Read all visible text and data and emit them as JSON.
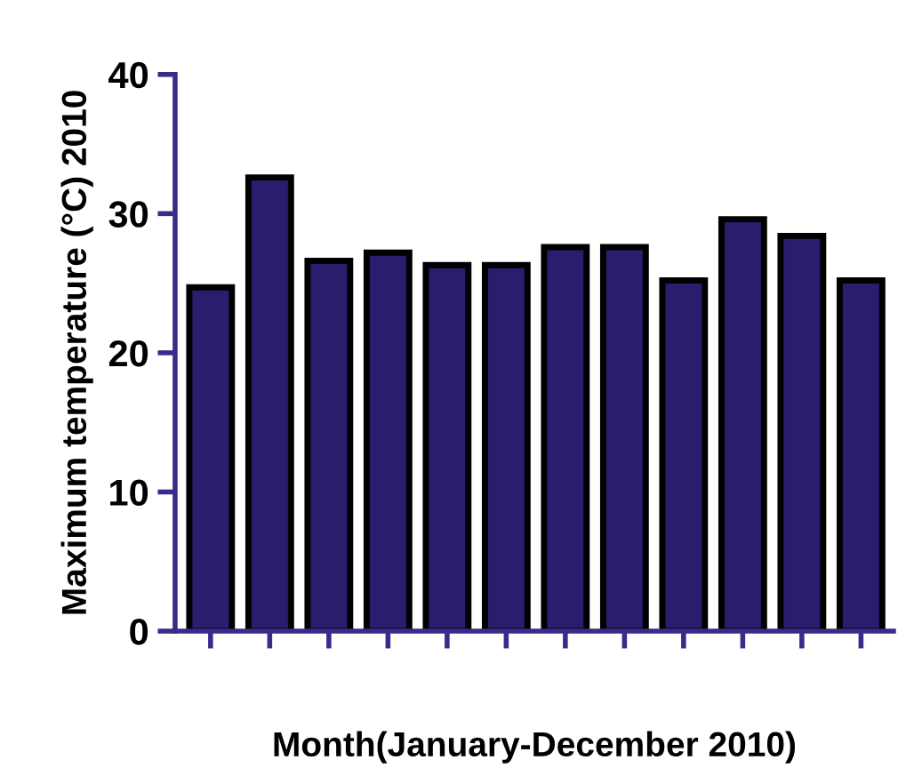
{
  "chart_data": {
    "type": "bar",
    "xlabel": "Month(January-December 2010)",
    "ylabel": "Maximum temperature (°C) 2010",
    "categories": [
      null,
      null,
      null,
      null,
      null,
      null,
      null,
      null,
      null,
      null,
      null,
      null
    ],
    "values": [
      24.7,
      32.6,
      26.6,
      27.2,
      26.3,
      26.3,
      27.6,
      27.6,
      25.2,
      29.6,
      28.4,
      25.2
    ],
    "color": "#2a1d6e",
    "ylim": [
      0,
      40
    ],
    "yticks": [
      0,
      10,
      20,
      30,
      40
    ],
    "grid": false
  }
}
